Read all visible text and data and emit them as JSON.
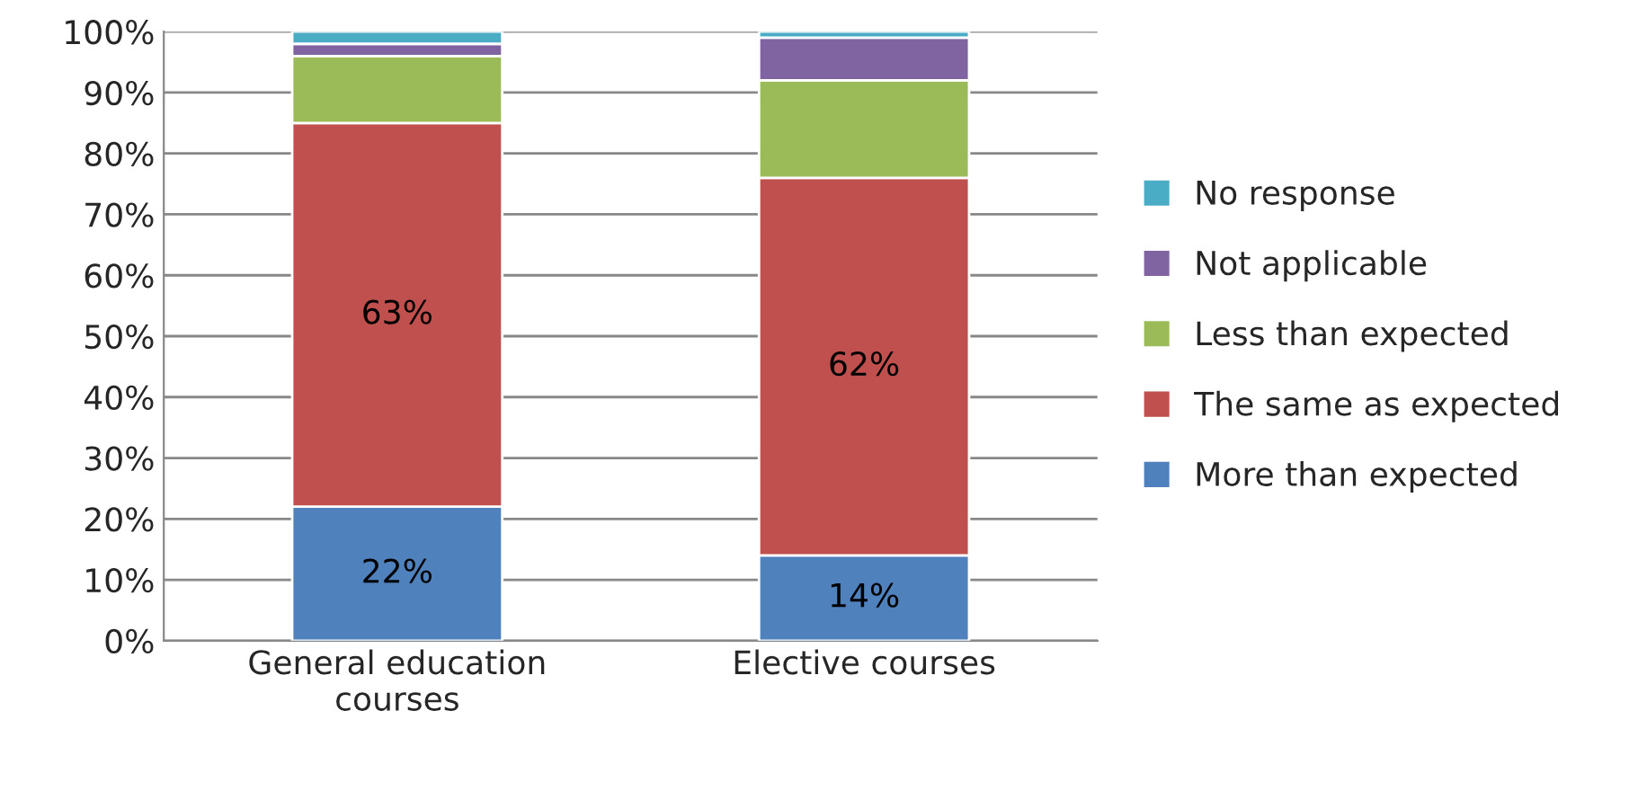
{
  "chart_data": {
    "type": "bar",
    "stacked": true,
    "categories": [
      "General education courses",
      "Elective courses"
    ],
    "series": [
      {
        "name": "More than expected",
        "color": "#4f81bd",
        "values": [
          22,
          14
        ],
        "value_labels": [
          "22%",
          "14%"
        ]
      },
      {
        "name": "The same as expected",
        "color": "#c0504d",
        "values": [
          63,
          62
        ],
        "value_labels": [
          "63%",
          "62%"
        ]
      },
      {
        "name": "Less than expected",
        "color": "#9bbb59",
        "values": [
          11,
          16
        ]
      },
      {
        "name": "Not applicable",
        "color": "#8064a2",
        "values": [
          2,
          7
        ]
      },
      {
        "name": "No response",
        "color": "#4bacc6",
        "values": [
          2,
          1
        ]
      }
    ],
    "ylim": [
      0,
      100
    ],
    "yticks": [
      {
        "value": 0,
        "label": "0%"
      },
      {
        "value": 10,
        "label": "10%"
      },
      {
        "value": 20,
        "label": "20%"
      },
      {
        "value": 30,
        "label": "30%"
      },
      {
        "value": 40,
        "label": "40%"
      },
      {
        "value": 50,
        "label": "50%"
      },
      {
        "value": 60,
        "label": "60%"
      },
      {
        "value": 70,
        "label": "70%"
      },
      {
        "value": 80,
        "label": "80%"
      },
      {
        "value": 90,
        "label": "90%"
      },
      {
        "value": 100,
        "label": "100%"
      }
    ],
    "grid": "y",
    "legend": "right"
  }
}
